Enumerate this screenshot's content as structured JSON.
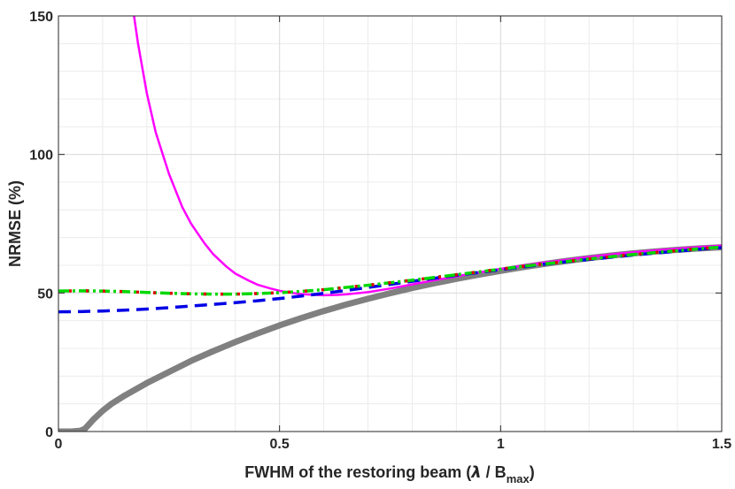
{
  "chart_data": {
    "type": "line",
    "title": "",
    "xlabel": {
      "main": "FWHM of the restoring beam (",
      "lambda": "λ",
      "slash": " / B",
      "sub": "max",
      "close": ")"
    },
    "ylabel": "NRMSE (%)",
    "xlim": [
      0,
      1.5
    ],
    "ylim": [
      0,
      150
    ],
    "x_ticks": [
      0,
      0.5,
      1,
      1.5
    ],
    "x_tick_labels": [
      "0",
      "0.5",
      "1",
      "1.5"
    ],
    "y_ticks": [
      0,
      50,
      100,
      150
    ],
    "y_tick_labels": [
      "0",
      "50",
      "100",
      "150"
    ],
    "minor_x_step": 0.1,
    "minor_y_step": 10,
    "grid": true,
    "series": [
      {
        "name": "gray-thick",
        "color": "#808080",
        "style": "solid",
        "x": [
          0,
          0.03,
          0.05,
          0.06,
          0.08,
          0.1,
          0.12,
          0.15,
          0.2,
          0.25,
          0.3,
          0.35,
          0.4,
          0.45,
          0.5,
          0.55,
          0.6,
          0.65,
          0.7,
          0.75,
          0.8,
          0.85,
          0.9,
          0.95,
          1.0,
          1.05,
          1.1,
          1.15,
          1.2,
          1.25,
          1.3,
          1.35,
          1.4,
          1.45,
          1.5
        ],
        "y": [
          0,
          0,
          0.3,
          1,
          4.5,
          7.5,
          10,
          13,
          17.5,
          21.5,
          25.5,
          29,
          32.3,
          35.4,
          38.3,
          41,
          43.5,
          45.8,
          47.9,
          49.9,
          51.8,
          53.5,
          55.1,
          56.6,
          58,
          59.3,
          60.5,
          61.6,
          62.6,
          63.5,
          64.3,
          65,
          65.6,
          66.1,
          66.5
        ]
      },
      {
        "name": "magenta",
        "color": "#ff00ff",
        "style": "solid",
        "x": [
          0.17,
          0.18,
          0.2,
          0.22,
          0.25,
          0.28,
          0.3,
          0.33,
          0.35,
          0.38,
          0.4,
          0.43,
          0.45,
          0.48,
          0.5,
          0.53,
          0.55,
          0.58,
          0.6,
          0.63,
          0.65,
          0.7,
          0.75,
          0.8,
          0.85,
          0.9,
          0.95,
          1.0,
          1.05,
          1.1,
          1.15,
          1.2,
          1.25,
          1.3,
          1.35,
          1.4,
          1.45,
          1.5
        ],
        "y": [
          151,
          140,
          122,
          108,
          93,
          81,
          75,
          68,
          64,
          59.5,
          57,
          54.5,
          53,
          51.6,
          50.8,
          50,
          49.6,
          49.3,
          49.2,
          49.3,
          49.5,
          50.3,
          51.6,
          53.1,
          54.6,
          56,
          57.4,
          58.7,
          59.9,
          61,
          62,
          63,
          63.9,
          64.7,
          65.4,
          66,
          66.6,
          67.1
        ]
      },
      {
        "name": "blue-dashed",
        "color": "#0000e6",
        "style": "dashed",
        "x": [
          0,
          0.05,
          0.1,
          0.15,
          0.2,
          0.25,
          0.3,
          0.35,
          0.4,
          0.45,
          0.5,
          0.55,
          0.6,
          0.65,
          0.7,
          0.75,
          0.8,
          0.85,
          0.9,
          0.95,
          1.0,
          1.05,
          1.1,
          1.15,
          1.2,
          1.25,
          1.3,
          1.35,
          1.4,
          1.45,
          1.5
        ],
        "y": [
          43.2,
          43.3,
          43.5,
          43.8,
          44.2,
          44.7,
          45.3,
          45.9,
          46.5,
          47.2,
          48,
          48.9,
          49.9,
          50.9,
          52,
          53.1,
          54.2,
          55.3,
          56.4,
          57.4,
          58.4,
          59.4,
          60.4,
          61.3,
          62.1,
          62.9,
          63.7,
          64.4,
          65.1,
          65.8,
          66.4
        ]
      },
      {
        "name": "green-red-dashdot",
        "color": "#00d800",
        "color2": "#e00000",
        "style": "dashdot",
        "x": [
          0,
          0.05,
          0.1,
          0.15,
          0.2,
          0.25,
          0.3,
          0.35,
          0.4,
          0.45,
          0.5,
          0.55,
          0.6,
          0.65,
          0.7,
          0.75,
          0.8,
          0.85,
          0.9,
          0.95,
          1.0,
          1.05,
          1.1,
          1.15,
          1.2,
          1.25,
          1.3,
          1.35,
          1.4,
          1.45,
          1.5
        ],
        "y": [
          50.7,
          50.8,
          50.7,
          50.5,
          50.2,
          49.9,
          49.7,
          49.6,
          49.6,
          49.8,
          50.1,
          50.6,
          51.2,
          52,
          52.8,
          53.7,
          54.6,
          55.6,
          56.6,
          57.6,
          58.6,
          59.6,
          60.5,
          61.4,
          62.3,
          63.1,
          63.9,
          64.6,
          65.3,
          66,
          66.6
        ]
      }
    ]
  }
}
